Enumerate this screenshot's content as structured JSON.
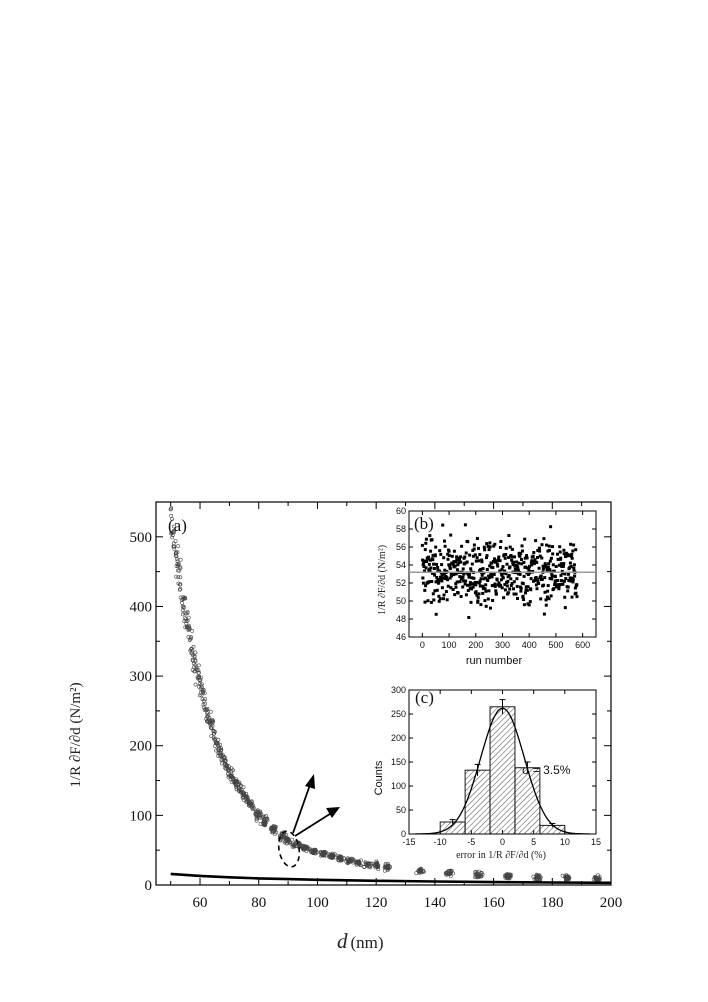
{
  "chart_data": [
    {
      "id": "main",
      "type": "scatter",
      "panel_label": "(a)",
      "xlabel_italic": "d",
      "xlabel_unit": "(nm)",
      "ylabel": "1/R ∂F/∂d (N/m²)",
      "xlim": [
        45,
        200
      ],
      "ylim": [
        0,
        550
      ],
      "xticks": [
        60,
        80,
        100,
        120,
        140,
        160,
        180,
        200
      ],
      "yticks": [
        0,
        100,
        200,
        300,
        400,
        500
      ],
      "series": [
        {
          "style": "open-circles",
          "color": "#444444",
          "x": [
            50,
            52,
            54,
            56,
            58,
            60,
            62,
            64,
            66,
            68,
            70,
            72,
            74,
            76,
            78,
            80,
            85,
            90,
            95,
            100,
            105,
            110,
            115,
            120,
            125,
            135,
            145,
            155,
            165,
            175,
            185,
            195
          ],
          "y": [
            525,
            470,
            415,
            365,
            325,
            290,
            255,
            228,
            200,
            180,
            162,
            148,
            133,
            122,
            110,
            100,
            80,
            64,
            54,
            47,
            41,
            36,
            31,
            28,
            25,
            20,
            17,
            15,
            13,
            11,
            10,
            9
          ]
        },
        {
          "style": "line",
          "color": "#000000",
          "x": [
            50,
            60,
            70,
            80,
            90,
            100,
            120,
            140,
            160,
            180,
            200
          ],
          "y": [
            16,
            13,
            11,
            9.5,
            8.5,
            7.5,
            6,
            5,
            4.2,
            3.6,
            3.2
          ]
        }
      ],
      "annotations": "dashed ellipse near d≈95 nm with two arrows pointing to insets"
    },
    {
      "id": "inset-b",
      "type": "scatter",
      "panel_label": "(b)",
      "xlabel": "run number",
      "ylabel": "1/R ∂F/∂d (N/m²)",
      "xlim": [
        -50,
        650
      ],
      "ylim": [
        46,
        60
      ],
      "xticks": [
        0,
        100,
        200,
        300,
        400,
        500,
        600
      ],
      "yticks": [
        46,
        48,
        50,
        52,
        54,
        56,
        58,
        60
      ],
      "n_points": 580,
      "mean": 53.2,
      "spread_range": [
        48,
        58.5
      ],
      "mean_line_color": "#999999"
    },
    {
      "id": "inset-c",
      "type": "bar",
      "panel_label": "(c)",
      "xlabel": "error in 1/R ∂F/∂d (%)",
      "ylabel": "Counts",
      "xlim": [
        -15,
        15
      ],
      "ylim": [
        0,
        300
      ],
      "xticks": [
        -15,
        -10,
        -5,
        0,
        5,
        10,
        15
      ],
      "yticks": [
        0,
        50,
        100,
        150,
        200,
        250,
        300
      ],
      "bins": [
        [
          -10,
          -6
        ],
        [
          -6,
          -2
        ],
        [
          -2,
          2
        ],
        [
          2,
          6
        ],
        [
          6,
          10
        ]
      ],
      "values": [
        25,
        133,
        265,
        138,
        18
      ],
      "error_bars": [
        5,
        12,
        15,
        12,
        4
      ],
      "fit": "gaussian",
      "sigma_label": "σ = 3.5%"
    }
  ]
}
